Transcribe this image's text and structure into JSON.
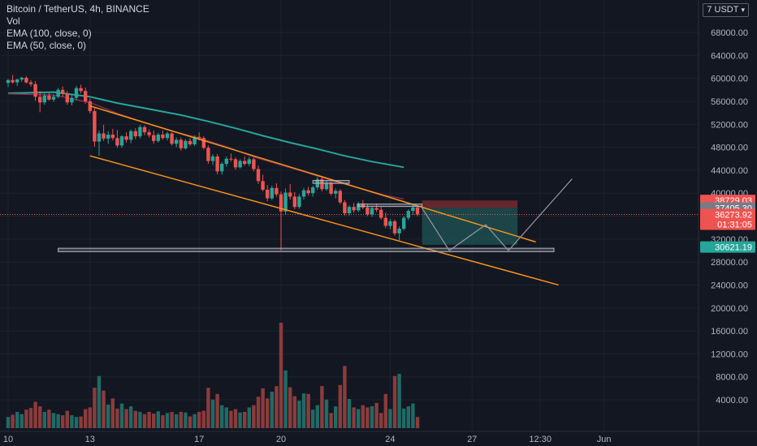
{
  "legend": {
    "symbol": "Bitcoin / TetherUS, 4h, BINANCE",
    "vol": "Vol",
    "ema100": "EMA (100, close, 0)",
    "ema50": "EMA (50, close, 0)"
  },
  "currency_selector": {
    "label": "USDT",
    "prefix": "7",
    "chevron": "▾"
  },
  "colors": {
    "background": "#131722",
    "grid": "#1e222d",
    "text": "#b2b5be",
    "up": "#26a69a",
    "down": "#ef5350",
    "vol_up": "#1f6b66",
    "vol_down": "#8c3b3b",
    "ema100": "#26a69a",
    "ema50": "#8e2a52",
    "trendline": "#f7931a",
    "projection": "#9598a1",
    "zone_box": "#b2b5be",
    "target_zone": "#1d4e4f",
    "stop_zone": "#6b2a2f"
  },
  "chart_data": {
    "type": "candlestick",
    "title": "Bitcoin / TetherUS, 4h, BINANCE",
    "y_ticks": [
      4000,
      8000,
      12000,
      16000,
      20000,
      24000,
      28000,
      32000,
      36000,
      40000,
      44000,
      48000,
      52000,
      56000,
      60000,
      64000,
      68000
    ],
    "y_tick_labels": [
      "4000.00",
      "8000.00",
      "12000.00",
      "16000.00",
      "20000.00",
      "24000.00",
      "28000.00",
      "32000.00",
      "36000.00",
      "40000.00",
      "44000.00",
      "48000.00",
      "52000.00",
      "56000.00",
      "60000.00",
      "64000.00",
      "68000.00"
    ],
    "x_ticks": [
      {
        "label": "10",
        "t": 0
      },
      {
        "label": "13",
        "t": 18
      },
      {
        "label": "17",
        "t": 42
      },
      {
        "label": "20",
        "t": 60
      },
      {
        "label": "24",
        "t": 84
      },
      {
        "label": "27",
        "t": 102
      },
      {
        "label": "12:30",
        "t": 117
      },
      {
        "label": "Jun",
        "t": 131
      }
    ],
    "price_labels": [
      {
        "value": 38729.03,
        "text": "38729.03",
        "color": "#ef5350"
      },
      {
        "value": 37405.3,
        "text": "37405.30",
        "color": "#787b86"
      },
      {
        "value": 36273.92,
        "text": "36273.92",
        "countdown": "01:31:05",
        "color": "#ef5350"
      },
      {
        "value": 30621.19,
        "text": "30621.19",
        "color": "#26a69a"
      }
    ],
    "current_price": 36273.92,
    "ema100": [
      [
        0,
        57400
      ],
      [
        10,
        57600
      ],
      [
        18,
        56800
      ],
      [
        24,
        55700
      ],
      [
        30,
        54800
      ],
      [
        38,
        53600
      ],
      [
        44,
        52500
      ],
      [
        50,
        51300
      ],
      [
        56,
        50000
      ],
      [
        62,
        48800
      ],
      [
        68,
        47700
      ],
      [
        74,
        46500
      ],
      [
        80,
        45500
      ],
      [
        87,
        44500
      ]
    ],
    "ema50": [
      [
        0,
        57300
      ],
      [
        10,
        57100
      ],
      [
        18,
        55800
      ],
      [
        24,
        53900
      ],
      [
        30,
        52300
      ],
      [
        36,
        50800
      ],
      [
        42,
        49600
      ],
      [
        48,
        48100
      ],
      [
        54,
        46300
      ],
      [
        60,
        44900
      ],
      [
        66,
        43500
      ],
      [
        72,
        42000
      ],
      [
        78,
        40700
      ],
      [
        83,
        39600
      ],
      [
        87,
        39000
      ]
    ],
    "candles": [
      [
        59200,
        59900,
        58500,
        59700
      ],
      [
        59700,
        60600,
        59100,
        59300
      ],
      [
        59300,
        60000,
        58700,
        59800
      ],
      [
        59800,
        60300,
        59400,
        60100
      ],
      [
        60100,
        60400,
        59100,
        59300
      ],
      [
        59300,
        59700,
        58600,
        59000
      ],
      [
        59000,
        59500,
        56100,
        56800
      ],
      [
        56800,
        57800,
        54100,
        55800
      ],
      [
        55800,
        57400,
        55400,
        57000
      ],
      [
        57000,
        57500,
        56100,
        56300
      ],
      [
        56300,
        57200,
        55900,
        56800
      ],
      [
        56800,
        58300,
        56500,
        58000
      ],
      [
        58000,
        58600,
        56800,
        57300
      ],
      [
        57300,
        57800,
        55400,
        55800
      ],
      [
        55800,
        57100,
        55300,
        56600
      ],
      [
        56600,
        58700,
        56200,
        58300
      ],
      [
        58300,
        58900,
        57400,
        57800
      ],
      [
        57800,
        58400,
        55600,
        56000
      ],
      [
        56000,
        56500,
        53900,
        54300
      ],
      [
        54300,
        54800,
        48100,
        49000
      ],
      [
        49000,
        50900,
        46500,
        50400
      ],
      [
        50400,
        51900,
        49100,
        49500
      ],
      [
        49500,
        50800,
        48600,
        50200
      ],
      [
        50200,
        51200,
        49200,
        49600
      ],
      [
        49600,
        51000,
        47900,
        48300
      ],
      [
        48300,
        50100,
        47900,
        49900
      ],
      [
        49900,
        50600,
        48800,
        49300
      ],
      [
        49300,
        51100,
        48700,
        50800
      ],
      [
        50800,
        51300,
        49400,
        49900
      ],
      [
        49900,
        51900,
        49500,
        51500
      ],
      [
        51500,
        51800,
        50100,
        50600
      ],
      [
        50600,
        51100,
        49700,
        50100
      ],
      [
        50100,
        50900,
        48600,
        49100
      ],
      [
        49100,
        50500,
        48800,
        50200
      ],
      [
        50200,
        50900,
        49300,
        49600
      ],
      [
        49600,
        50700,
        49200,
        50400
      ],
      [
        50400,
        50600,
        48300,
        48600
      ],
      [
        48600,
        49700,
        48000,
        49300
      ],
      [
        49300,
        49700,
        47400,
        47800
      ],
      [
        47800,
        49400,
        47600,
        49100
      ],
      [
        49100,
        49600,
        48200,
        48500
      ],
      [
        48500,
        50100,
        48200,
        49800
      ],
      [
        49800,
        50600,
        49200,
        49600
      ],
      [
        49600,
        49900,
        47600,
        47900
      ],
      [
        47900,
        48300,
        45100,
        45600
      ],
      [
        45600,
        46800,
        44900,
        46400
      ],
      [
        46400,
        46800,
        43300,
        43800
      ],
      [
        43800,
        45400,
        43200,
        45100
      ],
      [
        45100,
        46400,
        44600,
        46000
      ],
      [
        46000,
        46900,
        45500,
        45900
      ],
      [
        45900,
        46200,
        44100,
        44500
      ],
      [
        44500,
        45900,
        44300,
        45600
      ],
      [
        45600,
        46400,
        44800,
        45100
      ],
      [
        45100,
        46300,
        44700,
        45900
      ],
      [
        45900,
        46200,
        43800,
        44200
      ],
      [
        44200,
        44800,
        41600,
        42100
      ],
      [
        42100,
        43200,
        40300,
        40600
      ],
      [
        40600,
        41400,
        38600,
        39100
      ],
      [
        39100,
        41300,
        38800,
        40900
      ],
      [
        40900,
        41700,
        39400,
        39800
      ],
      [
        39800,
        40300,
        30000,
        36800
      ],
      [
        36800,
        40800,
        36200,
        40100
      ],
      [
        40100,
        41600,
        38900,
        39400
      ],
      [
        39400,
        40200,
        37200,
        37600
      ],
      [
        37600,
        39800,
        37300,
        39400
      ],
      [
        39400,
        40900,
        38900,
        40500
      ],
      [
        40500,
        41100,
        39600,
        40000
      ],
      [
        40000,
        41300,
        39400,
        41000
      ],
      [
        41000,
        42800,
        40600,
        42400
      ],
      [
        42400,
        42800,
        40300,
        40700
      ],
      [
        40700,
        42200,
        40400,
        41800
      ],
      [
        41800,
        42000,
        39600,
        39900
      ],
      [
        39900,
        40800,
        39100,
        40400
      ],
      [
        40400,
        40700,
        38100,
        38400
      ],
      [
        38400,
        38800,
        36100,
        36500
      ],
      [
        36500,
        37900,
        36100,
        37600
      ],
      [
        37600,
        38300,
        36600,
        37000
      ],
      [
        37000,
        38500,
        36700,
        38200
      ],
      [
        38200,
        38800,
        37200,
        37500
      ],
      [
        37500,
        38100,
        36000,
        36300
      ],
      [
        36300,
        37700,
        35900,
        37400
      ],
      [
        37400,
        38200,
        36700,
        37100
      ],
      [
        37100,
        37700,
        35400,
        35700
      ],
      [
        35700,
        36600,
        33900,
        34300
      ],
      [
        34300,
        35500,
        33700,
        35100
      ],
      [
        35100,
        35400,
        32600,
        33000
      ],
      [
        33000,
        34200,
        31800,
        33800
      ],
      [
        33800,
        36000,
        33500,
        35700
      ],
      [
        35700,
        37200,
        35300,
        36900
      ],
      [
        36900,
        38100,
        36200,
        37500
      ],
      [
        37500,
        37900,
        36000,
        36300
      ]
    ],
    "volume_max": 18800,
    "volume": [
      2000,
      2400,
      2900,
      2500,
      3300,
      3600,
      4700,
      3900,
      2900,
      3300,
      2700,
      2500,
      2300,
      3100,
      2300,
      2000,
      2100,
      3400,
      3700,
      7200,
      9300,
      6700,
      4200,
      5300,
      3500,
      4400,
      3400,
      3900,
      3100,
      2900,
      2500,
      2900,
      2600,
      3000,
      2300,
      2700,
      2900,
      2500,
      2900,
      2800,
      2100,
      2500,
      2900,
      3100,
      7200,
      5100,
      6100,
      4100,
      3700,
      3100,
      3400,
      2800,
      2900,
      3700,
      4100,
      5600,
      7100,
      5300,
      6500,
      7500,
      18800,
      10300,
      7300,
      5700,
      4900,
      6200,
      6100,
      3300,
      4100,
      7500,
      5100,
      2700,
      3900,
      7700,
      11100,
      5200,
      3700,
      3400,
      4100,
      3700,
      3900,
      4500,
      2700,
      6100,
      3400,
      9300,
      9700,
      3500,
      3900,
      4400,
      2000
    ],
    "trendlines": {
      "channel_upper": [
        [
          18,
          55200
        ],
        [
          116,
          31500
        ]
      ],
      "channel_lower": [
        [
          18,
          46500
        ],
        [
          121,
          24000
        ]
      ],
      "support_box": [
        [
          11,
          29800
        ],
        [
          120,
          30400
        ]
      ],
      "resistance_box_1": [
        [
          67,
          41700
        ],
        [
          75,
          42200
        ]
      ],
      "resistance_box_2": [
        [
          77,
          37800
        ],
        [
          91,
          38100
        ]
      ],
      "target_zone": [
        [
          91,
          31000
        ],
        [
          112,
          37400
        ]
      ],
      "stop_zone": [
        [
          91,
          37400
        ],
        [
          112,
          38729
        ]
      ],
      "projection": [
        [
          91,
          37400
        ],
        [
          97,
          30000
        ],
        [
          105,
          34500
        ],
        [
          110,
          30000
        ],
        [
          124,
          42500
        ]
      ]
    }
  }
}
